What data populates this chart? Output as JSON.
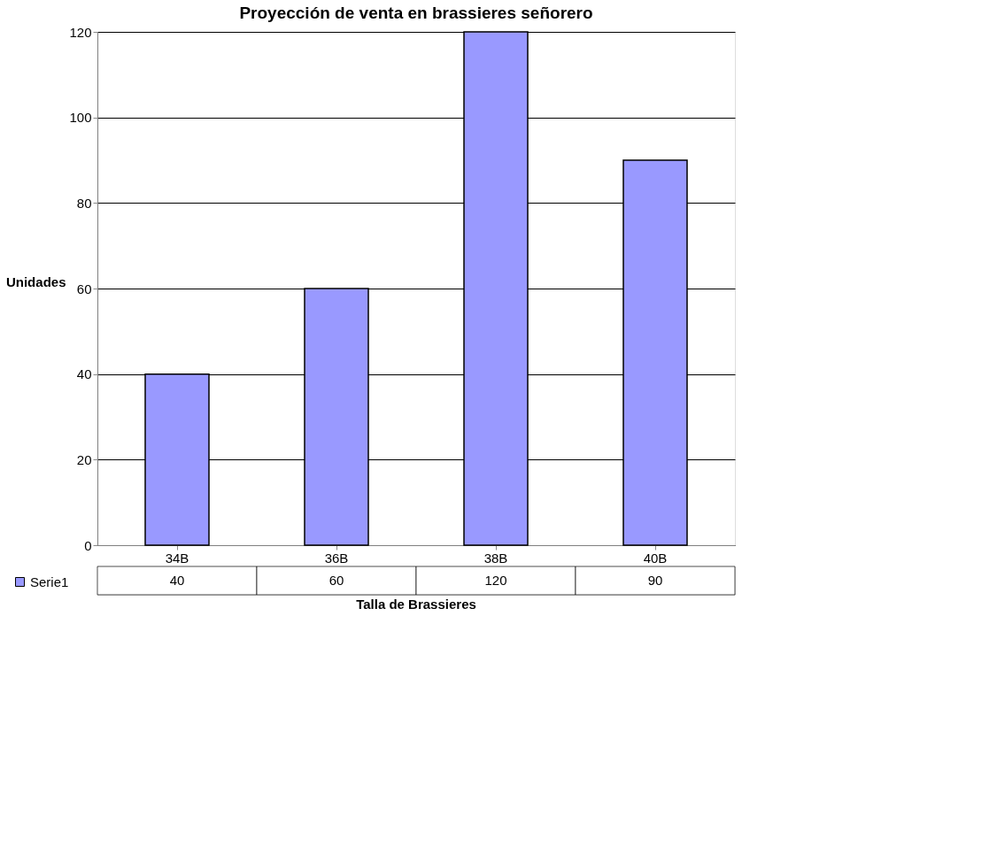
{
  "chart_data": {
    "type": "bar",
    "title": "Proyección de venta en brassieres señorero",
    "xlabel": "Talla de Brassieres",
    "ylabel": "Unidades",
    "categories": [
      "34B",
      "36B",
      "38B",
      "40B"
    ],
    "series": [
      {
        "name": "Serie1",
        "color": "#9999ff",
        "values": [
          40,
          60,
          120,
          90
        ]
      }
    ],
    "ylim": [
      0,
      120
    ],
    "yticks": [
      0,
      20,
      40,
      60,
      80,
      100,
      120
    ],
    "grid": "y",
    "legend": "bottom",
    "data_labels": true
  }
}
